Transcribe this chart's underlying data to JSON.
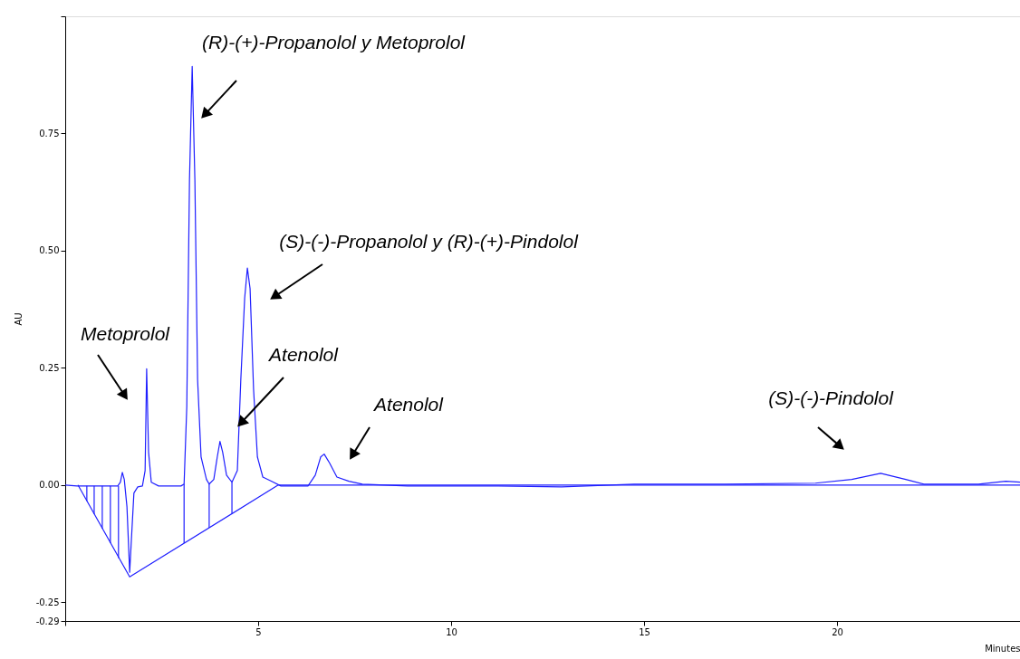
{
  "chart_data": {
    "type": "line",
    "xlabel": "Minutes",
    "ylabel": "AU",
    "xlim": [
      0,
      24.74
    ],
    "ylim": [
      -0.29,
      1.0
    ],
    "xticks": [
      {
        "value": 0,
        "label": null
      },
      5,
      10,
      15,
      20
    ],
    "yticks": [
      {
        "value": -0.29,
        "label": "-0.29"
      },
      {
        "value": -0.25,
        "label": "-0.25"
      },
      {
        "value": 0,
        "label": "0.00"
      },
      {
        "value": 0.25,
        "label": "0.25"
      },
      {
        "value": 0.5,
        "label": "0.50"
      },
      {
        "value": 0.75,
        "label": "0.75"
      },
      {
        "value": 1.0,
        "label": null
      }
    ],
    "grid": false,
    "marker": "none",
    "line_style": "solid",
    "series": [
      {
        "color": "#1f1fff",
        "x": [
          0,
          0.31,
          1.36,
          1.43,
          1.48,
          1.53,
          1.6,
          1.67,
          1.71,
          1.78,
          1.88,
          2.0,
          2.07,
          2.11,
          2.16,
          2.23,
          2.42,
          3.0,
          3.08,
          3.15,
          3.22,
          3.29,
          3.36,
          3.43,
          3.52,
          3.66,
          3.73,
          3.85,
          3.94,
          4.01,
          4.08,
          4.18,
          4.32,
          4.46,
          4.55,
          4.65,
          4.72,
          4.79,
          4.88,
          4.98,
          5.12,
          5.35,
          5.59,
          6.29,
          6.48,
          6.62,
          6.71,
          6.85,
          7.04,
          7.35,
          7.7,
          8.87,
          11.22,
          12.86,
          14.74,
          17.09,
          19.44,
          20.38,
          21.13,
          21.78,
          22.25,
          23.66,
          24.37,
          24.74
        ],
        "values": [
          0,
          -0.002,
          -0.002,
          0.006,
          0.027,
          0.012,
          -0.047,
          -0.186,
          -0.124,
          -0.017,
          -0.004,
          -0.002,
          0.031,
          0.248,
          0.07,
          0.006,
          -0.002,
          -0.002,
          0.002,
          0.167,
          0.651,
          0.893,
          0.651,
          0.225,
          0.06,
          0.012,
          0.002,
          0.012,
          0.06,
          0.093,
          0.07,
          0.021,
          0.006,
          0.031,
          0.225,
          0.399,
          0.463,
          0.419,
          0.205,
          0.06,
          0.017,
          0.008,
          -0.002,
          -0.002,
          0.021,
          0.06,
          0.066,
          0.047,
          0.017,
          0.008,
          0.002,
          -0.002,
          -0.002,
          -0.004,
          0.002,
          0.002,
          0.004,
          0.012,
          0.025,
          0.012,
          0.002,
          0.002,
          0.008,
          0.006
        ]
      },
      {
        "color": "#1f1fff",
        "x": [
          0.33,
          1.67,
          5.52,
          24.74
        ],
        "values": [
          0,
          -0.196,
          0,
          0
        ]
      },
      {
        "color": "#1f1fff",
        "x": [
          0.56,
          0.56
        ],
        "values": [
          -0.002,
          -0.034
        ]
      },
      {
        "color": "#1f1fff",
        "x": [
          0.75,
          0.75
        ],
        "values": [
          -0.002,
          -0.062
        ]
      },
      {
        "color": "#1f1fff",
        "x": [
          0.96,
          0.96
        ],
        "values": [
          -0.002,
          -0.093
        ]
      },
      {
        "color": "#1f1fff",
        "x": [
          1.17,
          1.17
        ],
        "values": [
          -0.002,
          -0.124
        ]
      },
      {
        "color": "#1f1fff",
        "x": [
          1.38,
          1.38
        ],
        "values": [
          -0.002,
          -0.156
        ]
      },
      {
        "color": "#1f1fff",
        "x": [
          3.08,
          3.08
        ],
        "values": [
          0.002,
          -0.124
        ]
      },
      {
        "color": "#1f1fff",
        "x": [
          3.73,
          3.73
        ],
        "values": [
          0.002,
          -0.091
        ]
      },
      {
        "color": "#1f1fff",
        "x": [
          4.32,
          4.32
        ],
        "values": [
          0.006,
          -0.061
        ]
      }
    ],
    "annotations": [
      "Metoprolol",
      "(R)-(+)-Propanolol y Metoprolol",
      "(S)-(-)-Propanolol y (R)-(+)-Pindolol",
      {
        "text": "Atenolol",
        "x": 4.46,
        "y": 0.124
      },
      "Atenolol",
      "(S)-(-)-Pindolol"
    ]
  }
}
